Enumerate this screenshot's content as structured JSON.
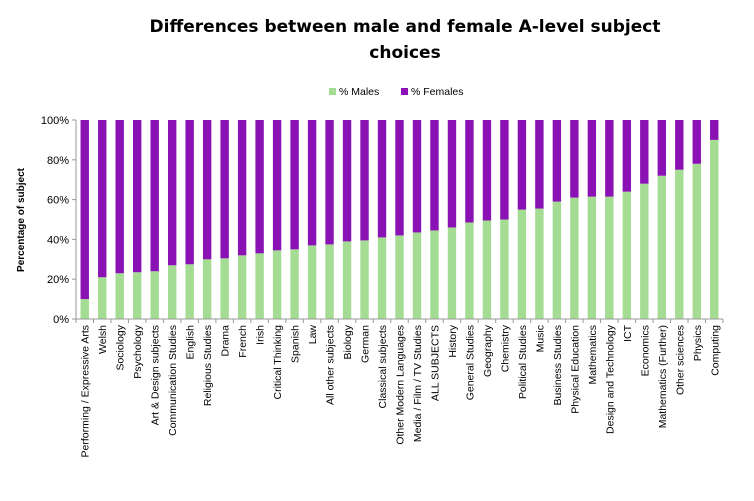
{
  "chart_data": {
    "type": "bar",
    "stacked": true,
    "percent": true,
    "title": "Differences between male and female A-level subject choices",
    "ylabel": "Percentage of subject",
    "xlabel": "",
    "ylim": [
      0,
      100
    ],
    "yticks": [
      "0%",
      "20%",
      "40%",
      "60%",
      "80%",
      "100%"
    ],
    "grid": false,
    "legend_position": "top",
    "categories": [
      "Performing / Expressive Arts",
      "Welsh",
      "Sociology",
      "Psychology",
      "Art & Design subjects",
      "Communication Studies",
      "English",
      "Religious Studies",
      "Drama",
      "French",
      "Irish",
      "Critical Thinking",
      "Spanish",
      "Law",
      "All other subjects",
      "Biology",
      "German",
      "Classical subjects",
      "Other Modern Languages",
      "Media / Film / TV Studies",
      "ALL SUBJECTS",
      "History",
      "General Studies",
      "Geography",
      "Chemistry",
      "Political Studies",
      "Music",
      "Business Studies",
      "Physical Education",
      "Mathematics",
      "Design and Technology",
      "ICT",
      "Economics",
      "Mathematics (Further)",
      "Other sciences",
      "Physics",
      "Computing"
    ],
    "series": [
      {
        "name": "% Males",
        "color": "#a3dc92",
        "values": [
          10,
          21,
          23,
          23.5,
          24,
          27,
          27.5,
          30,
          30.5,
          32,
          33,
          34.5,
          35,
          37,
          37.5,
          39,
          39.5,
          41,
          42,
          43.5,
          44.5,
          46,
          48.5,
          49.5,
          50,
          55,
          55.5,
          59,
          61,
          61.5,
          61.5,
          64,
          68,
          72,
          75,
          78,
          90
        ]
      },
      {
        "name": "% Females",
        "color": "#8a12b4",
        "values": [
          90,
          79,
          77,
          76.5,
          76,
          73,
          72.5,
          70,
          69.5,
          68,
          67,
          65.5,
          65,
          63,
          62.5,
          61,
          60.5,
          59,
          58,
          56.5,
          55.5,
          54,
          51.5,
          50.5,
          50,
          45,
          44.5,
          41,
          39,
          38.5,
          38.5,
          36,
          32,
          28,
          25,
          22,
          10
        ]
      }
    ]
  }
}
